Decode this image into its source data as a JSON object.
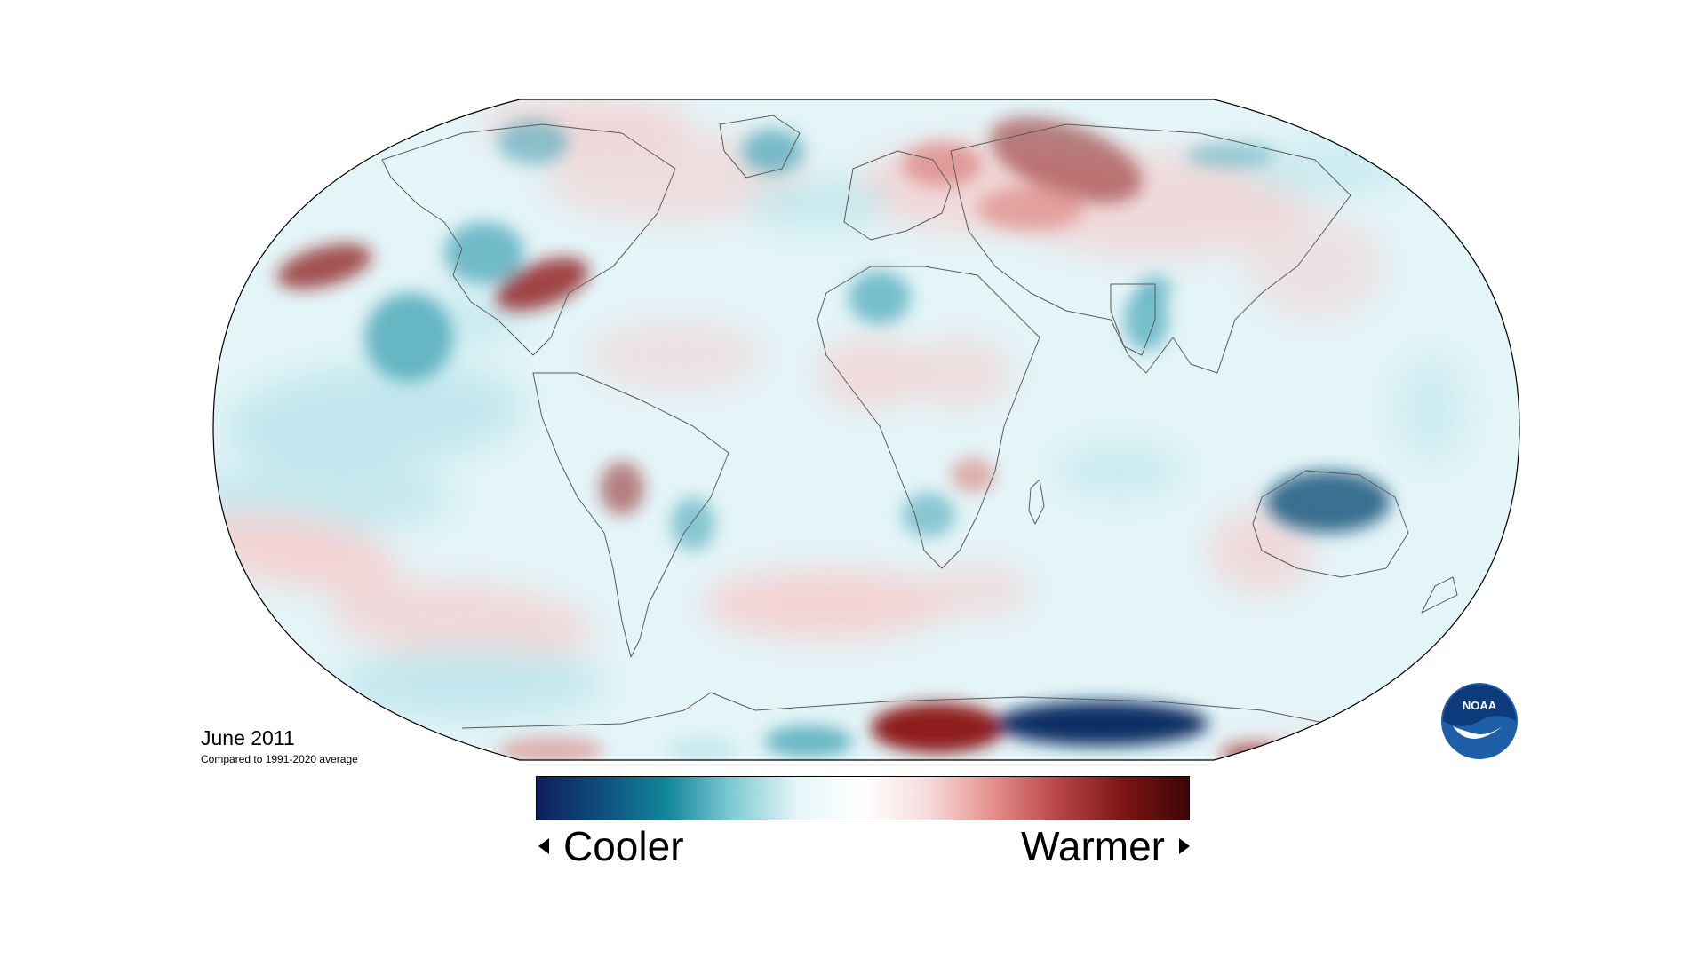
{
  "caption": {
    "title": "June 2011",
    "subtitle": "Compared to 1991-2020 average"
  },
  "legend": {
    "cooler_label": "Cooler",
    "warmer_label": "Warmer",
    "gradient_colors": [
      "#0f1f5c",
      "#0e4f7e",
      "#13869a",
      "#7fcbd4",
      "#e6f6f8",
      "#ffffff",
      "#f7dcdc",
      "#e48f8c",
      "#b84545",
      "#7d1515",
      "#3d0506"
    ]
  },
  "logo": {
    "text": "NOAA",
    "primary_color": "#1f5fa8",
    "secondary_color": "#0d3a7a"
  },
  "map": {
    "projection": "Robinson",
    "ocean_base_color": "#e4f5f8",
    "anomaly_colors": {
      "warm_strong": "#8e1d1d",
      "warm": "#d8807c",
      "warm_light": "#f4cfcf",
      "cool_light": "#bfe6ec",
      "cool": "#4aa7b8",
      "cool_strong": "#0f4f77",
      "cool_very_strong": "#0d2f63"
    }
  }
}
